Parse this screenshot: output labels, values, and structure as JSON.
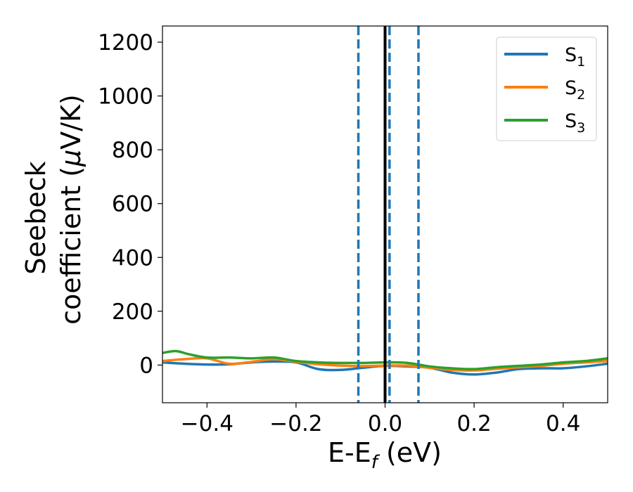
{
  "chart_data": {
    "type": "line",
    "title": "",
    "xlabel": "E-E",
    "xlabel_sub": "f",
    "xlabel_unit": " (eV)",
    "ylabel_line1": "Seebeck",
    "ylabel_line2": "coefficient  (",
    "ylabel_mu": "μ",
    "ylabel_unit": "V/K)",
    "xlim": [
      -0.5,
      0.5
    ],
    "ylim": [
      -140,
      1260
    ],
    "xticks": [
      {
        "value": -0.4,
        "label": "−0.4"
      },
      {
        "value": -0.2,
        "label": "−0.2"
      },
      {
        "value": 0.0,
        "label": "0.0"
      },
      {
        "value": 0.2,
        "label": "0.2"
      },
      {
        "value": 0.4,
        "label": "0.4"
      }
    ],
    "yticks": [
      {
        "value": 0,
        "label": "0"
      },
      {
        "value": 200,
        "label": "200"
      },
      {
        "value": 400,
        "label": "400"
      },
      {
        "value": 600,
        "label": "600"
      },
      {
        "value": 800,
        "label": "800"
      },
      {
        "value": 1000,
        "label": "1000"
      },
      {
        "value": 1200,
        "label": "1200"
      }
    ],
    "grid": false,
    "legend_position": "top-right",
    "vlines": [
      {
        "x": 0.0,
        "color": "#000000",
        "style": "solid"
      },
      {
        "x": -0.06,
        "color": "#1f77b4",
        "style": "dashed"
      },
      {
        "x": 0.01,
        "color": "#1f77b4",
        "style": "dashed"
      },
      {
        "x": 0.075,
        "color": "#1f77b4",
        "style": "dashed"
      }
    ],
    "series": [
      {
        "name": "S",
        "sub": "1",
        "color": "#1f77b4",
        "x": [
          -0.5,
          -0.45,
          -0.4,
          -0.35,
          -0.3,
          -0.25,
          -0.2,
          -0.15,
          -0.1,
          -0.05,
          0.0,
          0.05,
          0.1,
          0.15,
          0.2,
          0.25,
          0.3,
          0.35,
          0.4,
          0.45,
          0.5
        ],
        "y": [
          10,
          5,
          2,
          3,
          10,
          13,
          10,
          -15,
          -18,
          -10,
          -3,
          -5,
          -10,
          -28,
          -35,
          -28,
          -15,
          -12,
          -12,
          -5,
          5
        ]
      },
      {
        "name": "S",
        "sub": "2",
        "color": "#ff7f0e",
        "x": [
          -0.5,
          -0.45,
          -0.4,
          -0.35,
          -0.3,
          -0.25,
          -0.2,
          -0.15,
          -0.1,
          -0.05,
          0.0,
          0.05,
          0.1,
          0.15,
          0.2,
          0.25,
          0.3,
          0.35,
          0.4,
          0.45,
          0.5
        ],
        "y": [
          15,
          22,
          25,
          5,
          12,
          22,
          12,
          3,
          -2,
          -4,
          -2,
          -2,
          -10,
          -18,
          -20,
          -14,
          -8,
          -3,
          5,
          10,
          15
        ]
      },
      {
        "name": "S",
        "sub": "3",
        "color": "#2ca02c",
        "x": [
          -0.5,
          -0.47,
          -0.44,
          -0.4,
          -0.35,
          -0.3,
          -0.25,
          -0.2,
          -0.15,
          -0.1,
          -0.05,
          0.0,
          0.05,
          0.1,
          0.15,
          0.2,
          0.25,
          0.3,
          0.35,
          0.4,
          0.45,
          0.5
        ],
        "y": [
          45,
          52,
          40,
          28,
          28,
          25,
          28,
          15,
          10,
          8,
          8,
          10,
          8,
          -5,
          -12,
          -15,
          -8,
          -3,
          2,
          10,
          15,
          25
        ]
      }
    ]
  }
}
